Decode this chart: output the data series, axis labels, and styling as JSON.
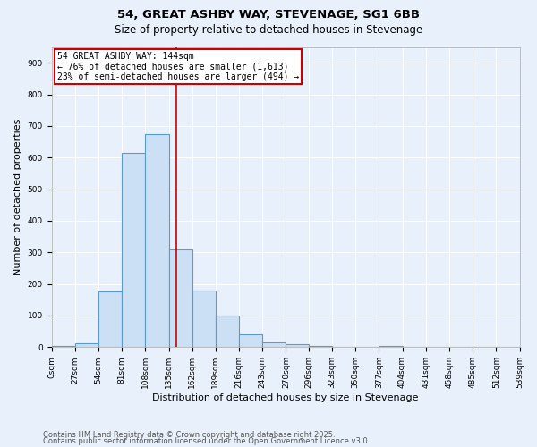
{
  "title_line1": "54, GREAT ASHBY WAY, STEVENAGE, SG1 6BB",
  "title_line2": "Size of property relative to detached houses in Stevenage",
  "xlabel": "Distribution of detached houses by size in Stevenage",
  "ylabel": "Number of detached properties",
  "bin_edges": [
    0,
    27,
    54,
    81,
    108,
    135,
    162,
    189,
    216,
    243,
    270,
    296,
    323,
    350,
    377,
    404,
    431,
    458,
    485,
    512,
    539
  ],
  "bar_heights": [
    5,
    12,
    175,
    615,
    675,
    310,
    180,
    100,
    40,
    15,
    10,
    5,
    0,
    0,
    5,
    0,
    0,
    0,
    0,
    0
  ],
  "bar_facecolor": "#cce0f5",
  "bar_edgecolor": "#5b9bd5",
  "background_color": "#e8f0fb",
  "grid_color": "#ffffff",
  "property_size": 144,
  "vline_color": "#cc0000",
  "annotation_text": "54 GREAT ASHBY WAY: 144sqm\n← 76% of detached houses are smaller (1,613)\n23% of semi-detached houses are larger (494) →",
  "annotation_box_color": "#cc0000",
  "annotation_bg": "#ffffff",
  "ylim": [
    0,
    950
  ],
  "yticks": [
    0,
    100,
    200,
    300,
    400,
    500,
    600,
    700,
    800,
    900
  ],
  "footnote1": "Contains HM Land Registry data © Crown copyright and database right 2025.",
  "footnote2": "Contains public sector information licensed under the Open Government Licence v3.0.",
  "title_fontsize": 9.5,
  "subtitle_fontsize": 8.5,
  "axis_label_fontsize": 8,
  "tick_fontsize": 6.5,
  "annotation_fontsize": 7,
  "footnote_fontsize": 6
}
